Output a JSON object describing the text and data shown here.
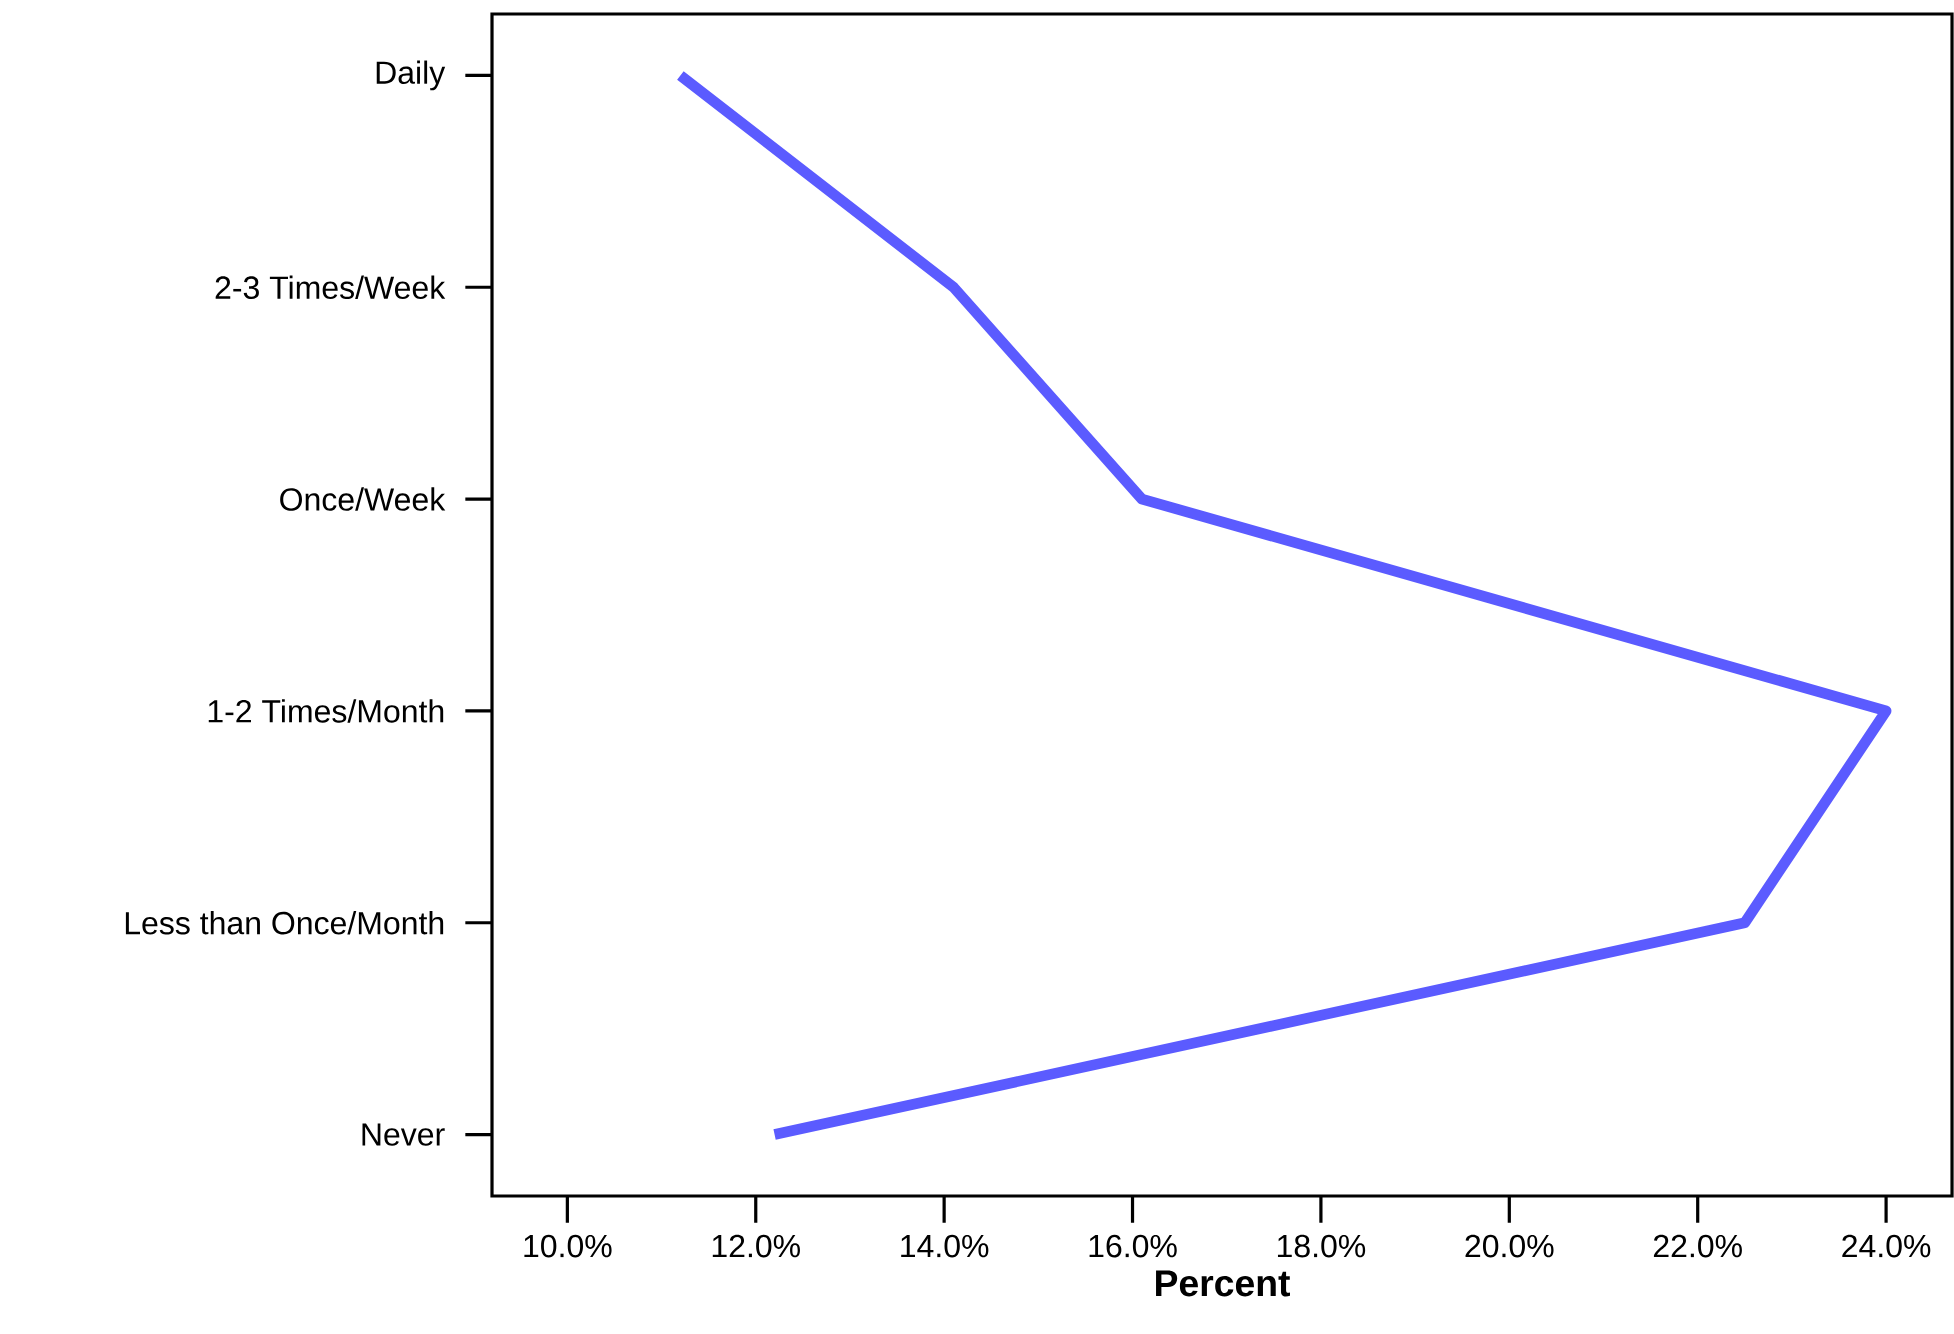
{
  "chart_data": {
    "type": "line",
    "orientation": "horizontal",
    "xlabel": "Percent",
    "categories": [
      "Daily",
      "2-3 Times/Week",
      "Once/Week",
      "1-2 Times/Month",
      "Less than Once/Month",
      "Never"
    ],
    "series": [
      {
        "color": "#5b5bff",
        "values": [
          11.2,
          14.1,
          16.1,
          24.0,
          22.5,
          12.2
        ]
      }
    ],
    "xlim": [
      9.2,
      24.7
    ],
    "xticks": [
      {
        "value": 10,
        "label": "10.0%"
      },
      {
        "value": 12,
        "label": "12.0%"
      },
      {
        "value": 14,
        "label": "14.0%"
      },
      {
        "value": 16,
        "label": "16.0%"
      },
      {
        "value": 18,
        "label": "18.0%"
      },
      {
        "value": 20,
        "label": "20.0%"
      },
      {
        "value": 22,
        "label": "22.0%"
      },
      {
        "value": 24,
        "label": "24.0%"
      }
    ],
    "grid": false,
    "marker": "none",
    "line_style": "solid"
  }
}
